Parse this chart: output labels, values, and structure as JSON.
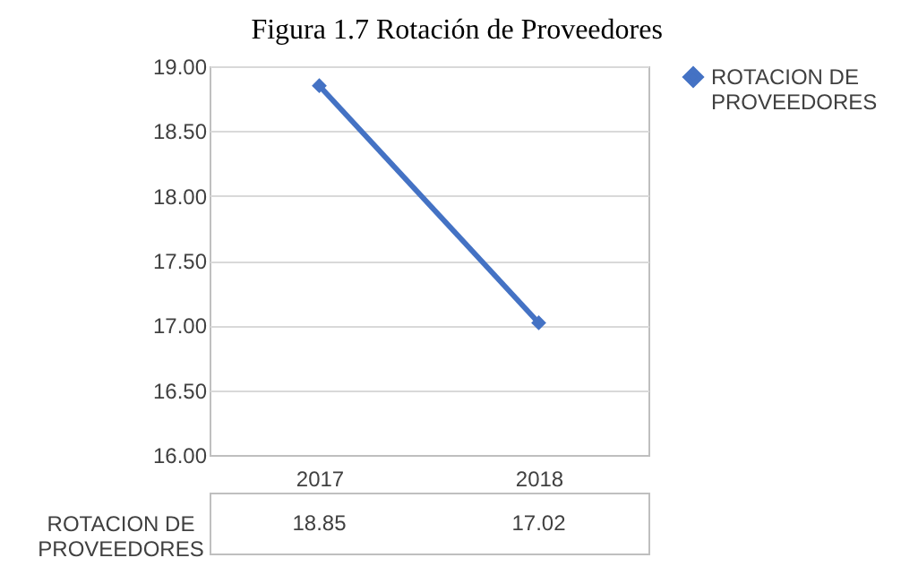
{
  "chart_data": {
    "type": "line",
    "title": "Figura 1.7 Rotación de Proveedores",
    "categories": [
      "2017",
      "2018"
    ],
    "series": [
      {
        "name": "ROTACION DE PROVEEDORES",
        "color": "#4472c4",
        "values": [
          18.85,
          17.02
        ]
      }
    ],
    "ylim": [
      16,
      19
    ],
    "yticks": [
      {
        "value": 16,
        "label": "16.00"
      },
      {
        "value": 16.5,
        "label": "16.50"
      },
      {
        "value": 17,
        "label": "17.00"
      },
      {
        "value": 17.5,
        "label": "17.50"
      },
      {
        "value": 18,
        "label": "18.00"
      },
      {
        "value": 18.5,
        "label": "18.50"
      },
      {
        "value": 19,
        "label": "19.00"
      }
    ],
    "grid": "y",
    "legend": "right",
    "marker": "diamond",
    "line_style": "solid",
    "data_labels": true
  }
}
